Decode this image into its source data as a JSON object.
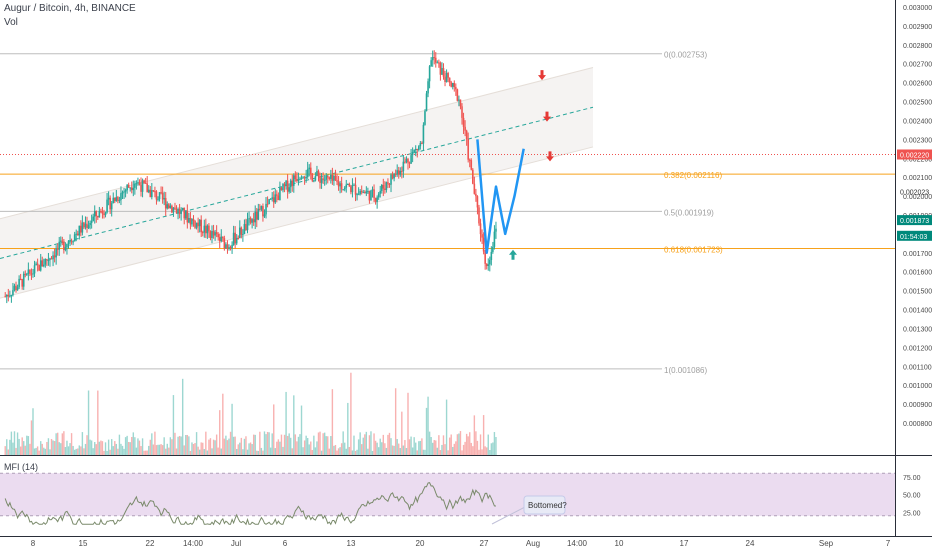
{
  "header": {
    "title": "Augur / Bitcoin, 4h, BINANCE",
    "volume_label": "Vol"
  },
  "colors": {
    "up": "#26a69a",
    "down": "#ef5350",
    "projection": "#2196f3",
    "fib_orange": "#f7a21b",
    "fib_gray": "#bdbdbd",
    "price_line": "#ef5350",
    "channel_fill": "#f1eeec",
    "mfi_band": "#e6d3ec",
    "mfi_line": "#7a8a6b",
    "axis_text": "#4a4a4a"
  },
  "chart_data": {
    "type": "candlestick",
    "symbol": "Augur / Bitcoin",
    "interval": "4h",
    "exchange": "BINANCE",
    "ylim": [
      0.00076,
      0.00303
    ],
    "y_ticks": [
      "0.003000",
      "0.002900",
      "0.002800",
      "0.002700",
      "0.002600",
      "0.002500",
      "0.002400",
      "0.002300",
      "0.002200",
      "0.002100",
      "0.002000",
      "0.001900",
      "0.001800",
      "0.001700",
      "0.001600",
      "0.001500",
      "0.001400",
      "0.001300",
      "0.001200",
      "0.001100",
      "0.001000",
      "0.000900",
      "0.000800"
    ],
    "x_ticks": [
      "8",
      "15",
      "22",
      "14:00",
      "Jul",
      "6",
      "13",
      "20",
      "27",
      "Aug",
      "14:00",
      "10",
      "17",
      "24",
      "Sep",
      "7"
    ],
    "price_markers": [
      {
        "label": "0.002220",
        "value": 0.00222,
        "style": "current-red"
      },
      {
        "label": "0.002023",
        "value": 0.002023,
        "style": "plain"
      },
      {
        "label": "0.001873",
        "value": 0.001873,
        "style": "teal"
      },
      {
        "label": "01:54:03",
        "value": 0.00179,
        "style": "teal-countdown"
      }
    ],
    "fibonacci": [
      {
        "label": "0(0.002753)",
        "value": 0.002753,
        "color": "gray"
      },
      {
        "label": "0.382(0.002116)",
        "value": 0.002116,
        "color": "orange"
      },
      {
        "label": "0.5(0.001919)",
        "value": 0.001919,
        "color": "gray"
      },
      {
        "label": "0.618(0.001723)",
        "value": 0.001723,
        "color": "orange"
      },
      {
        "label": "1(0.001086)",
        "value": 0.001086,
        "color": "gray"
      }
    ],
    "key_closes": [
      {
        "x": "Jun 5",
        "price": 0.00147
      },
      {
        "x": "Jun 19",
        "price": 0.00208
      },
      {
        "x": "Jun 29",
        "price": 0.00174
      },
      {
        "x": "Jul 7",
        "price": 0.00213
      },
      {
        "x": "Jul 15",
        "price": 0.002
      },
      {
        "x": "Jul 20",
        "price": 0.00228
      },
      {
        "x": "Jul 21",
        "price": 0.00274
      },
      {
        "x": "Jul 24",
        "price": 0.00252
      },
      {
        "x": "Jul 27",
        "price": 0.00162
      },
      {
        "x": "Jul 28",
        "price": 0.00182
      }
    ],
    "projection_path": [
      {
        "x": "Jul 26",
        "price": 0.0023
      },
      {
        "x": "Jul 27",
        "price": 0.0017
      },
      {
        "x": "Jul 28",
        "price": 0.00205
      },
      {
        "x": "Jul 29",
        "price": 0.0018
      },
      {
        "x": "Jul 30",
        "price": 0.002
      },
      {
        "x": "Jul 31",
        "price": 0.00225
      }
    ],
    "mfi": {
      "label": "MFI (14)",
      "y_ticks": [
        "75.00",
        "50.00",
        "25.00"
      ],
      "band": [
        20,
        80
      ],
      "annotation": "Bottomed?"
    }
  }
}
